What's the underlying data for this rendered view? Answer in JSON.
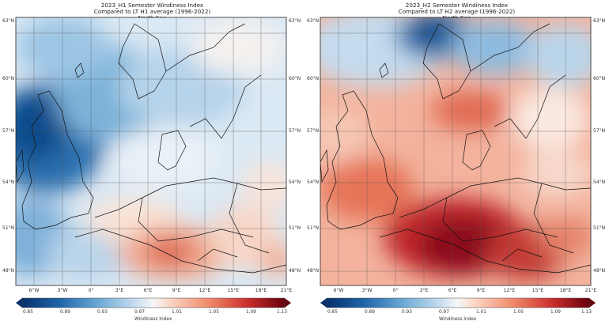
{
  "panels": [
    {
      "title": [
        "2023_H1 Semester Windiness Index",
        "Compared to LT H1 average (1996-2022)",
        "North Sea"
      ],
      "lat_labels": [
        "63°N",
        "60°N",
        "57°N",
        "54°N",
        "51°N",
        "48°N"
      ],
      "lon_labels": [
        "6°W",
        "3°W",
        "0°",
        "3°E",
        "6°E",
        "9°E",
        "12°E",
        "15°E",
        "18°E",
        "21°E"
      ],
      "colorbar": {
        "ticks": [
          "0.85",
          "0.89",
          "0.93",
          "0.97",
          "1.01",
          "1.05",
          "1.09",
          "1.13"
        ],
        "label": "Windiness Index"
      },
      "field_description": "Blue (low windiness) over UK, North Sea and Norway; reddish (high) over central Europe"
    },
    {
      "title": [
        "2023_H2 Semester Windiness Index",
        "Compared to LT H2 average (1996-2022)",
        "North Sea"
      ],
      "lat_labels": [
        "63°N",
        "60°N",
        "57°N",
        "54°N",
        "51°N",
        "48°N"
      ],
      "lon_labels": [
        "6°W",
        "3°W",
        "0°",
        "3°E",
        "6°E",
        "9°E",
        "12°E",
        "15°E",
        "18°E",
        "21°E"
      ],
      "colorbar": {
        "ticks": [
          "0.85",
          "0.89",
          "0.93",
          "0.97",
          "1.01",
          "1.05",
          "1.09",
          "1.13"
        ],
        "label": "Windiness Index"
      },
      "field_description": "Dark red (high windiness) over France/Germany/Benelux; blue over Norway"
    }
  ],
  "colors": {
    "dark_blue": "#08306b",
    "mid_blue": "#4a90c2",
    "light_blue": "#c6dbef",
    "white": "#f7f7f7",
    "light_red": "#fcbba1",
    "mid_red": "#e3563f",
    "dark_red": "#8b0a1a"
  }
}
